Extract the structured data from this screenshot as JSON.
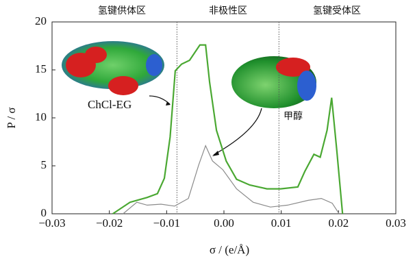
{
  "chart_data": {
    "type": "line",
    "xlabel": "σ / (e/Å)",
    "ylabel": "P / σ",
    "regions": [
      "氢键供体区",
      "非极性区",
      "氢键受体区"
    ],
    "region_bounds": [
      -0.0082,
      0.0096
    ],
    "annotations": [
      "ChCl-EG",
      "甲醇"
    ],
    "xlim": [
      -0.03,
      0.03
    ],
    "xticks": [
      {
        "value": -0.03,
        "label": "−0.03"
      },
      {
        "value": -0.02,
        "label": "−0.02"
      },
      {
        "value": -0.01,
        "label": "−0.01"
      },
      {
        "value": 0,
        "label": "0.00"
      },
      {
        "value": 0.01,
        "label": "0.01"
      },
      {
        "value": 0.02,
        "label": "0.02"
      },
      {
        "value": 0.03,
        "label": "0.03"
      }
    ],
    "ylim": [
      0,
      20
    ],
    "yticks": [
      0,
      5,
      10,
      15,
      20
    ],
    "series": [
      {
        "name": "ChCl-EG",
        "color": "#4aa832",
        "x": [
          -0.0194,
          -0.0164,
          -0.0134,
          -0.0116,
          -0.0104,
          -0.0094,
          -0.0085,
          -0.0074,
          -0.006,
          -0.0042,
          -0.0032,
          -0.0025,
          -0.0013,
          0.0004,
          0.0022,
          0.0045,
          0.0075,
          0.0099,
          0.0129,
          0.0141,
          0.0157,
          0.0168,
          0.018,
          0.0188,
          0.0197,
          0.0207
        ],
        "values": [
          0,
          1.2,
          1.7,
          2.1,
          3.7,
          8,
          14.9,
          15.6,
          16,
          17.6,
          17.6,
          13.7,
          8.7,
          5.5,
          3.6,
          3,
          2.6,
          2.6,
          2.8,
          4.4,
          6.2,
          5.9,
          8.7,
          12.1,
          6.6,
          0
        ]
      },
      {
        "name": "甲醇",
        "color": "#8a8a8a",
        "x": [
          -0.0176,
          -0.0152,
          -0.0134,
          -0.011,
          -0.0086,
          -0.0062,
          -0.0044,
          -0.0032,
          -0.002,
          -0.0002,
          0.0022,
          0.0051,
          0.0081,
          0.0111,
          0.0147,
          0.017,
          0.0189,
          0.0201
        ],
        "values": [
          0,
          1.2,
          0.9,
          1,
          0.8,
          1.6,
          5.1,
          7.1,
          5.5,
          4.6,
          2.6,
          1.2,
          0.7,
          0.9,
          1.4,
          1.6,
          1.1,
          0
        ]
      }
    ]
  }
}
